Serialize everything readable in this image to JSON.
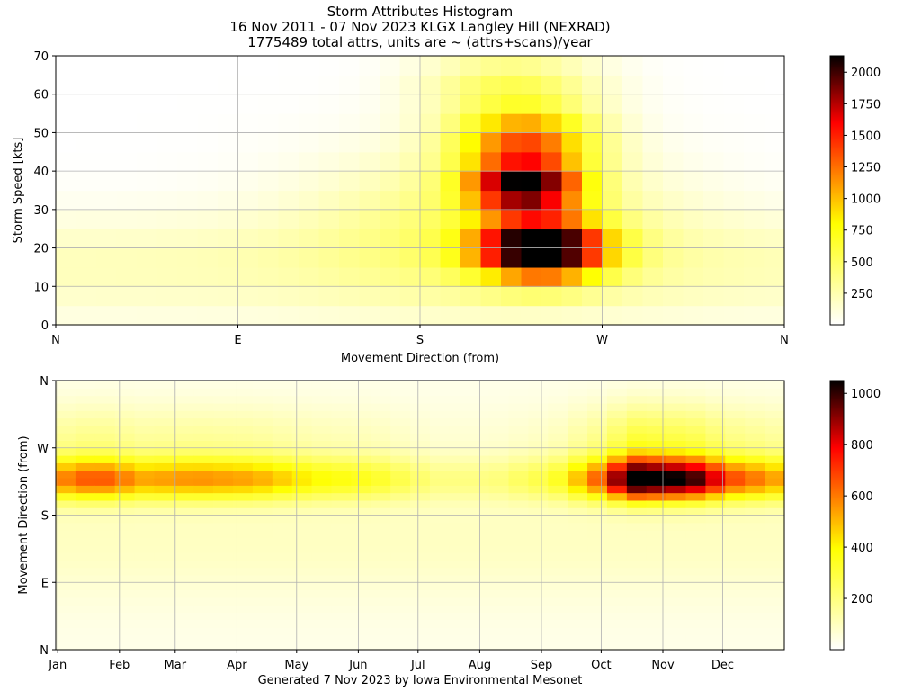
{
  "title_lines": [
    "Storm Attributes Histogram",
    "16 Nov 2011 - 07 Nov 2023 KLGX Langley Hill (NEXRAD)",
    "1775489 total attrs, units are ~ (attrs+scans)/year"
  ],
  "footer": "Generated 7 Nov 2023 by Iowa Environmental Mesonet",
  "chart_data": [
    {
      "type": "heatmap",
      "xlabel": "Movement Direction (from)",
      "ylabel": "Storm Speed [kts]",
      "x_ticks": [
        "N",
        "E",
        "S",
        "W",
        "N"
      ],
      "x_tick_degrees": [
        0,
        90,
        180,
        270,
        360
      ],
      "xlim": [
        0,
        360
      ],
      "y_ticks": [
        0,
        10,
        20,
        30,
        40,
        50,
        60,
        70
      ],
      "ylim": [
        0,
        70
      ],
      "grid": true,
      "colormap": "hot_r",
      "colorbar_ticks": [
        250,
        500,
        750,
        1000,
        1250,
        1500,
        1750,
        2000
      ],
      "colorbar_range": [
        0,
        2130
      ],
      "peak": {
        "direction_deg": 240,
        "speed_kts": 20,
        "value": 2100
      }
    },
    {
      "type": "heatmap",
      "xlabel": "",
      "ylabel": "Movement Direction (from)",
      "x_ticks": [
        "Jan",
        "Feb",
        "Mar",
        "Apr",
        "May",
        "Jun",
        "Jul",
        "Aug",
        "Sep",
        "Oct",
        "Nov",
        "Dec"
      ],
      "x_tick_days": [
        1,
        32,
        60,
        91,
        121,
        152,
        182,
        213,
        244,
        274,
        305,
        335
      ],
      "xlim": [
        0,
        366
      ],
      "y_ticks": [
        "N",
        "E",
        "S",
        "W",
        "N"
      ],
      "y_tick_degrees": [
        0,
        90,
        180,
        270,
        360
      ],
      "ylim": [
        0,
        360
      ],
      "grid": true,
      "colormap": "hot_r",
      "colorbar_ticks": [
        200,
        400,
        600,
        800,
        1000
      ],
      "colorbar_range": [
        0,
        1050
      ],
      "peak": {
        "day": 290,
        "direction_deg": 225,
        "value": 1040
      }
    }
  ]
}
